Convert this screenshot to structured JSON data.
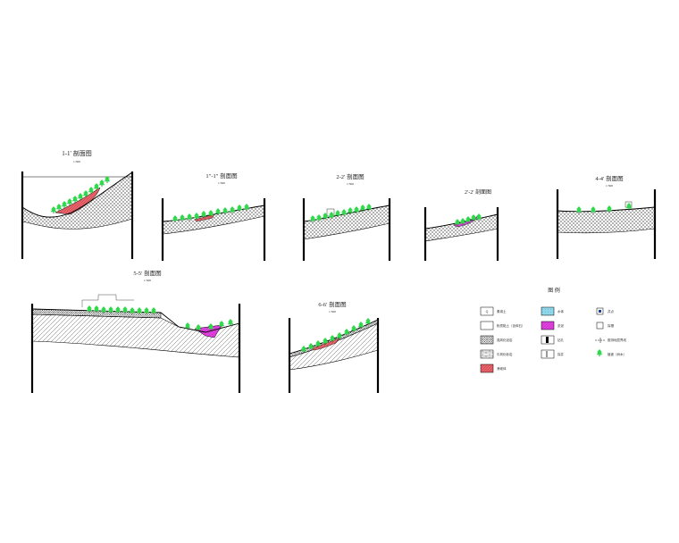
{
  "sections": [
    {
      "id": "s1",
      "title": "1-1′ 剖面图",
      "scale": "1:500"
    },
    {
      "id": "s2",
      "title": "1″-1″ 剖面图",
      "scale": "1:500"
    },
    {
      "id": "s3",
      "title": "2-2′ 剖面图",
      "scale": "1:500"
    },
    {
      "id": "s4",
      "title": "2′-2′ 剖面图",
      "scale": ""
    },
    {
      "id": "s5",
      "title": "4-4′ 剖面图",
      "scale": "1:500"
    },
    {
      "id": "s6",
      "title": "5-5′ 剖面图",
      "scale": "1:500"
    },
    {
      "id": "s7",
      "title": "6-6′ 剖面图",
      "scale": "1:500"
    }
  ],
  "legend": {
    "title": "图  例",
    "items": [
      {
        "label": "素填土",
        "pattern": "q"
      },
      {
        "label": "粉质黏土（含碎石）",
        "pattern": "clay"
      },
      {
        "label": "强风化泥岩",
        "pattern": "cross"
      },
      {
        "label": "中风化砂岩",
        "pattern": "brick"
      },
      {
        "label": "滑坡体",
        "pattern": "red"
      },
      {
        "label": "水体",
        "pattern": "water"
      },
      {
        "label": "淤泥",
        "pattern": "magenta"
      },
      {
        "label": "钻孔",
        "pattern": "bore"
      },
      {
        "label": "探井",
        "pattern": "well"
      },
      {
        "label": "井点",
        "pattern": "dot"
      },
      {
        "label": "探槽",
        "pattern": "box"
      },
      {
        "label": "推测地层界线",
        "pattern": "line"
      },
      {
        "label": "植被（树木）",
        "pattern": "tree"
      }
    ]
  },
  "colors": {
    "landslide": "#e8646a",
    "silt": "#e040e0",
    "water": "#8fd8ec",
    "tree": "#2fd84a",
    "axis": "#000000"
  }
}
